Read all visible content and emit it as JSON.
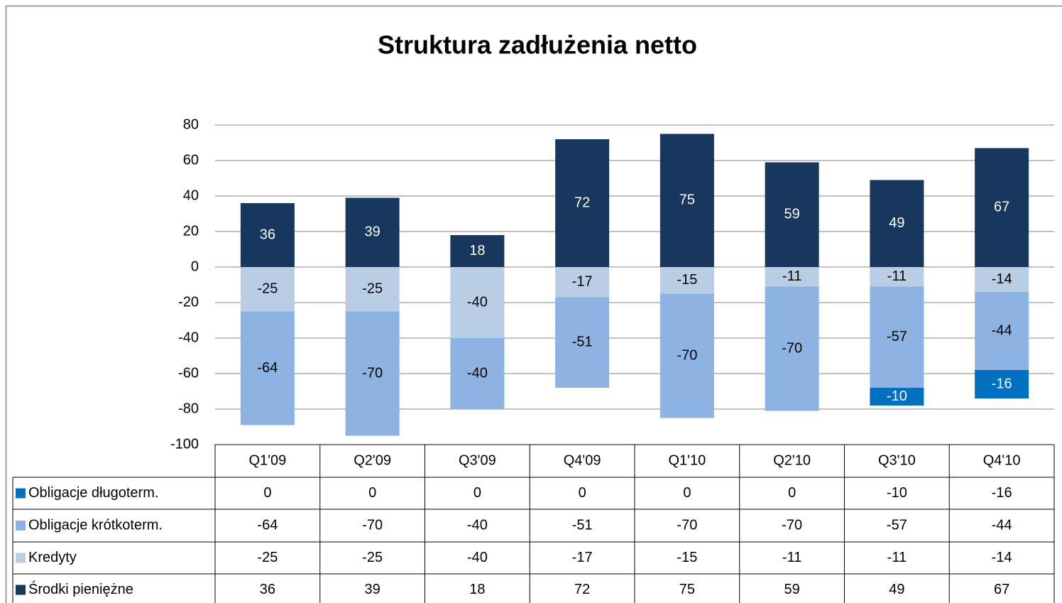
{
  "chart_data": {
    "type": "stacked_bar",
    "title": "Struktura zadłużenia netto",
    "categories": [
      "Q1'09",
      "Q2'09",
      "Q3'09",
      "Q4'09",
      "Q1'10",
      "Q2'10",
      "Q3'10",
      "Q4'10"
    ],
    "series": [
      {
        "name": "Obligacje długoterm.",
        "color": "#0070c0",
        "values": [
          0,
          0,
          0,
          0,
          0,
          0,
          -10,
          -16
        ]
      },
      {
        "name": "Obligacje krótkoterm.",
        "color": "#8db3e2",
        "values": [
          -64,
          -70,
          -40,
          -51,
          -70,
          -70,
          -57,
          -44
        ]
      },
      {
        "name": "Kredyty",
        "color": "#b9cde5",
        "values": [
          -25,
          -25,
          -40,
          -17,
          -15,
          -11,
          -11,
          -14
        ]
      },
      {
        "name": "Środki pieniężne",
        "color": "#17375e",
        "values": [
          36,
          39,
          18,
          72,
          75,
          59,
          49,
          67
        ]
      }
    ],
    "ylim": [
      -100,
      80
    ],
    "yticks": [
      -100,
      -80,
      -60,
      -40,
      -20,
      0,
      20,
      40,
      60,
      80
    ],
    "grid": true
  }
}
